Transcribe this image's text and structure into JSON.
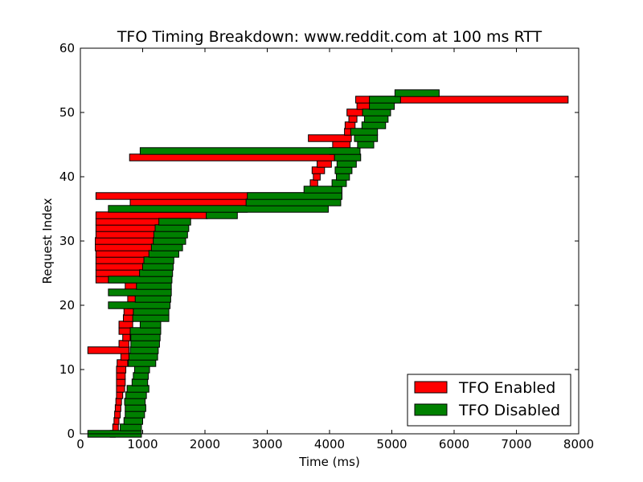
{
  "chart_data": {
    "type": "bar",
    "orientation": "horizontal-range",
    "title": "TFO Timing Breakdown: www.reddit.com at 100 ms RTT",
    "xlabel": "Time (ms)",
    "ylabel": "Request Index",
    "xlim": [
      0,
      8000
    ],
    "ylim": [
      0,
      60
    ],
    "xticks": [
      0,
      1000,
      2000,
      3000,
      4000,
      5000,
      6000,
      7000,
      8000
    ],
    "yticks": [
      0,
      10,
      20,
      30,
      40,
      50,
      60
    ],
    "grid": false,
    "legend_position": "bottom-right",
    "series": [
      {
        "name": "TFO Enabled",
        "color": "#ff0000",
        "ranges": [
          [
            480,
            560
          ],
          [
            520,
            610
          ],
          [
            540,
            620
          ],
          [
            550,
            640
          ],
          [
            560,
            650
          ],
          [
            570,
            660
          ],
          [
            580,
            680
          ],
          [
            580,
            710
          ],
          [
            580,
            720
          ],
          [
            580,
            720
          ],
          [
            580,
            730
          ],
          [
            590,
            760
          ],
          [
            650,
            780
          ],
          [
            120,
            780
          ],
          [
            620,
            780
          ],
          [
            680,
            800
          ],
          [
            620,
            820
          ],
          [
            620,
            840
          ],
          [
            690,
            850
          ],
          [
            700,
            860
          ],
          [
            760,
            900
          ],
          [
            760,
            920
          ],
          [
            770,
            940
          ],
          [
            720,
            960
          ],
          [
            250,
            1100
          ],
          [
            250,
            1100
          ],
          [
            250,
            1100
          ],
          [
            250,
            1120
          ],
          [
            250,
            1130
          ],
          [
            240,
            1150
          ],
          [
            240,
            1190
          ],
          [
            250,
            1210
          ],
          [
            250,
            1250
          ],
          [
            250,
            1270
          ],
          [
            250,
            2040
          ],
          [
            800,
            2680
          ],
          [
            800,
            2700
          ],
          [
            250,
            3580
          ],
          [
            3700,
            3800
          ],
          [
            3690,
            3810
          ],
          [
            3740,
            3850
          ],
          [
            3720,
            3920
          ],
          [
            3800,
            4030
          ],
          [
            790,
            4080
          ],
          [
            4000,
            4320
          ],
          [
            4050,
            4330
          ],
          [
            3660,
            4350
          ],
          [
            4240,
            4370
          ],
          [
            4250,
            4410
          ],
          [
            4310,
            4440
          ],
          [
            4280,
            4580
          ],
          [
            4440,
            4720
          ],
          [
            4420,
            7830
          ]
        ]
      },
      {
        "name": "TFO Disabled",
        "color": "#008000",
        "ranges": [
          [
            120,
            980
          ],
          [
            640,
            980
          ],
          [
            700,
            1000
          ],
          [
            720,
            1030
          ],
          [
            720,
            1050
          ],
          [
            710,
            1040
          ],
          [
            730,
            1060
          ],
          [
            750,
            1100
          ],
          [
            830,
            1080
          ],
          [
            850,
            1090
          ],
          [
            870,
            1110
          ],
          [
            770,
            1210
          ],
          [
            780,
            1240
          ],
          [
            800,
            1250
          ],
          [
            810,
            1270
          ],
          [
            810,
            1280
          ],
          [
            800,
            1290
          ],
          [
            960,
            1290
          ],
          [
            840,
            1420
          ],
          [
            850,
            1420
          ],
          [
            450,
            1440
          ],
          [
            880,
            1450
          ],
          [
            450,
            1460
          ],
          [
            900,
            1460
          ],
          [
            450,
            1470
          ],
          [
            950,
            1480
          ],
          [
            1000,
            1490
          ],
          [
            1020,
            1500
          ],
          [
            1100,
            1580
          ],
          [
            1140,
            1640
          ],
          [
            1170,
            1690
          ],
          [
            1180,
            1720
          ],
          [
            1200,
            1740
          ],
          [
            1260,
            1770
          ],
          [
            2020,
            2520
          ],
          [
            450,
            3980
          ],
          [
            2660,
            4180
          ],
          [
            2680,
            4200
          ],
          [
            3590,
            4200
          ],
          [
            4040,
            4270
          ],
          [
            4110,
            4320
          ],
          [
            4090,
            4360
          ],
          [
            4120,
            4430
          ],
          [
            4080,
            4500
          ],
          [
            960,
            4490
          ],
          [
            4450,
            4710
          ],
          [
            4400,
            4770
          ],
          [
            4340,
            4770
          ],
          [
            4520,
            4900
          ],
          [
            4560,
            4940
          ],
          [
            4530,
            4980
          ],
          [
            4640,
            5040
          ],
          [
            4640,
            5140
          ],
          [
            5050,
            5760
          ]
        ]
      }
    ]
  }
}
